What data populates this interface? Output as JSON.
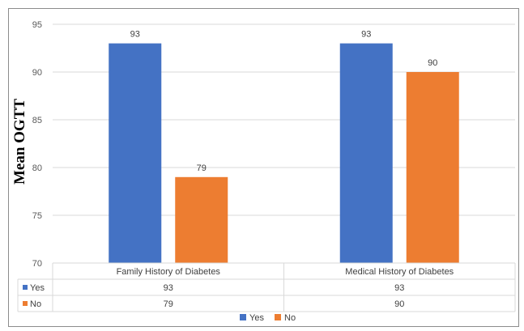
{
  "chart_data": {
    "type": "bar",
    "categories": [
      "Family History of Diabetes",
      "Medical History of Diabetes"
    ],
    "series": [
      {
        "name": "Yes",
        "values": [
          93,
          93
        ],
        "color": "#4472C4"
      },
      {
        "name": "No",
        "values": [
          79,
          90
        ],
        "color": "#ED7D31"
      }
    ],
    "title": "",
    "xlabel": "",
    "ylabel": "Mean OGTT",
    "ylim": [
      70,
      95
    ],
    "yticks": [
      70,
      75,
      80,
      85,
      90,
      95
    ],
    "grid": true,
    "data_table": true,
    "legend_position": "bottom"
  }
}
